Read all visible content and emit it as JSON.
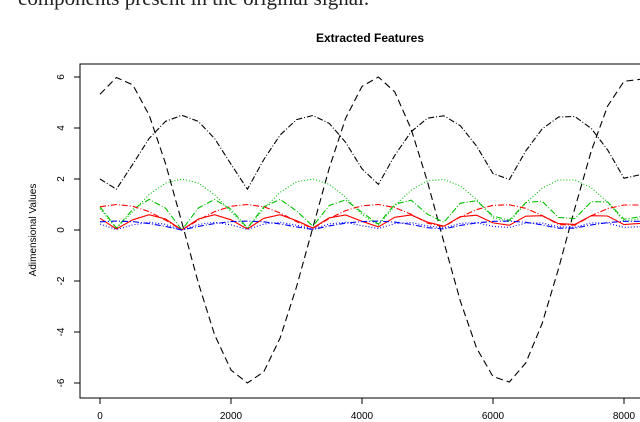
{
  "caption_fragment": "components present in the original signal.",
  "chart_data": {
    "type": "line",
    "title": "Extracted Features",
    "xlabel": "",
    "ylabel": "Adimensional Values",
    "xlim": [
      -300,
      8500
    ],
    "ylim": [
      -6.3,
      6.6
    ],
    "xticks": [
      0,
      2000,
      4000,
      6000,
      8000
    ],
    "yticks": [
      -6,
      -4,
      -2,
      0,
      2,
      4,
      6
    ],
    "grid": false,
    "x": [
      0,
      250,
      500,
      750,
      1000,
      1250,
      1500,
      1750,
      2000,
      2250,
      2500,
      2750,
      3000,
      3250,
      3500,
      3750,
      4000,
      4250,
      4500,
      4750,
      5000,
      5250,
      5500,
      5750,
      6000,
      6250,
      6500,
      6750,
      7000,
      7250,
      7500,
      7750,
      8000,
      8250,
      8500
    ],
    "series": [
      {
        "color": "#000000",
        "dash": "dashed",
        "values": [
          5.32,
          5.98,
          5.69,
          4.51,
          2.61,
          0.29,
          -2.07,
          -4.11,
          -5.49,
          -6.0,
          -5.56,
          -4.24,
          -2.23,
          0.1,
          2.43,
          4.38,
          5.63,
          6.0,
          5.41,
          3.96,
          1.89,
          -0.48,
          -2.78,
          -4.63,
          -5.75,
          -5.96,
          -5.21,
          -3.67,
          -1.52,
          0.86,
          3.1,
          4.86,
          5.83,
          5.91,
          5.03
        ]
      },
      {
        "color": "#000000",
        "dash": "dashdot",
        "values": [
          2.0,
          1.6,
          2.58,
          3.59,
          4.26,
          4.5,
          4.26,
          3.59,
          2.58,
          1.6,
          2.76,
          3.72,
          4.33,
          4.49,
          4.18,
          3.44,
          2.4,
          1.79,
          2.93,
          3.85,
          4.39,
          4.48,
          4.09,
          3.29,
          2.21,
          1.98,
          3.1,
          3.96,
          4.43,
          4.45,
          3.98,
          3.14,
          2.03,
          2.17,
          3.26
        ]
      },
      {
        "color": "#00c000",
        "dash": "dotted",
        "values": [
          0.84,
          0.06,
          0.72,
          1.39,
          1.84,
          2.0,
          1.84,
          1.39,
          0.72,
          0.06,
          0.84,
          1.48,
          1.89,
          2.0,
          1.79,
          1.29,
          0.6,
          0.19,
          0.95,
          1.56,
          1.93,
          1.98,
          1.73,
          1.2,
          0.48,
          0.32,
          1.06,
          1.64,
          1.96,
          1.96,
          1.66,
          1.09,
          0.35,
          0.44,
          1.17
        ]
      },
      {
        "color": "#00c000",
        "dash": "dashdot",
        "values": [
          0.91,
          0.08,
          0.81,
          1.2,
          0.86,
          0.0,
          0.86,
          1.2,
          0.81,
          0.08,
          0.91,
          1.2,
          0.75,
          0.15,
          0.96,
          1.18,
          0.69,
          0.23,
          1.01,
          1.17,
          0.62,
          0.3,
          1.05,
          1.15,
          0.55,
          0.38,
          1.08,
          1.13,
          0.49,
          0.45,
          1.11,
          1.1,
          0.42,
          0.52,
          1.14
        ]
      },
      {
        "color": "#ff0000",
        "dash": "dashdot",
        "values": [
          0.91,
          1.0,
          0.93,
          0.72,
          0.39,
          0.0,
          0.39,
          0.72,
          0.93,
          1.0,
          0.91,
          0.67,
          0.33,
          0.06,
          0.45,
          0.76,
          0.95,
          1.0,
          0.88,
          0.62,
          0.27,
          0.13,
          0.51,
          0.8,
          0.97,
          0.99,
          0.85,
          0.57,
          0.21,
          0.19,
          0.56,
          0.84,
          0.98,
          0.98,
          0.81
        ]
      },
      {
        "color": "#ff0000",
        "dash": "solid",
        "values": [
          0.46,
          0.04,
          0.4,
          0.6,
          0.43,
          0.0,
          0.43,
          0.6,
          0.4,
          0.04,
          0.46,
          0.6,
          0.37,
          0.08,
          0.48,
          0.59,
          0.34,
          0.12,
          0.5,
          0.59,
          0.31,
          0.15,
          0.52,
          0.58,
          0.28,
          0.19,
          0.54,
          0.56,
          0.25,
          0.22,
          0.56,
          0.55,
          0.21,
          0.26,
          0.57
        ]
      },
      {
        "color": "#0000ff",
        "dash": "dashdot",
        "values": [
          0.32,
          0.35,
          0.33,
          0.25,
          0.14,
          0.0,
          0.14,
          0.25,
          0.33,
          0.35,
          0.32,
          0.24,
          0.12,
          0.02,
          0.16,
          0.27,
          0.33,
          0.35,
          0.31,
          0.22,
          0.09,
          0.04,
          0.18,
          0.28,
          0.34,
          0.35,
          0.3,
          0.2,
          0.07,
          0.07,
          0.2,
          0.29,
          0.34,
          0.34,
          0.28
        ]
      },
      {
        "color": "#0000ff",
        "dash": "dotted",
        "values": [
          0.23,
          0.02,
          0.2,
          0.3,
          0.22,
          0.0,
          0.22,
          0.3,
          0.2,
          0.02,
          0.23,
          0.3,
          0.19,
          0.04,
          0.24,
          0.3,
          0.17,
          0.06,
          0.25,
          0.29,
          0.16,
          0.08,
          0.26,
          0.29,
          0.14,
          0.1,
          0.27,
          0.28,
          0.12,
          0.11,
          0.28,
          0.27,
          0.1,
          0.13,
          0.28
        ]
      }
    ]
  }
}
